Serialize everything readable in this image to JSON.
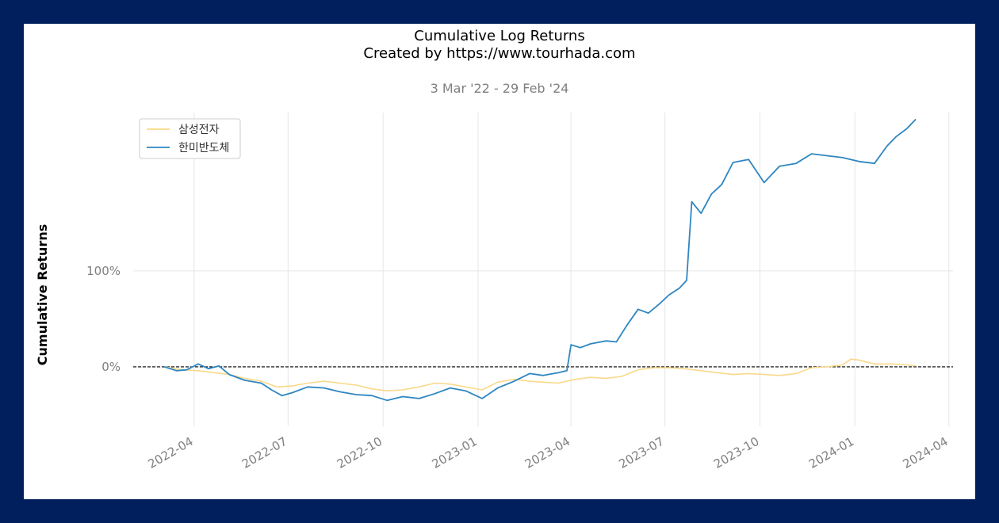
{
  "chart_data": {
    "type": "line",
    "title": "Cumulative Log Returns",
    "title2": "Created by https://www.tourhada.com",
    "subtitle": "3 Mar '22 - 29 Feb '24",
    "xlabel": "",
    "ylabel": "Cumulative Returns",
    "x_ticks": [
      "2022-04",
      "2022-07",
      "2022-10",
      "2023-01",
      "2023-04",
      "2023-07",
      "2023-10",
      "2024-01",
      "2024-04"
    ],
    "y_ticks": [
      {
        "value": 0,
        "label": "0%"
      },
      {
        "value": 100,
        "label": "100%"
      }
    ],
    "xlim": [
      "2022-02-01",
      "2024-04-05"
    ],
    "ylim": [
      -62,
      265
    ],
    "grid": true,
    "zero_line": true,
    "legend_position": "top-left",
    "series": [
      {
        "name": "삼성전자",
        "color": "#f9d98a",
        "points": [
          [
            "2022-03-03",
            0
          ],
          [
            "2022-03-20",
            -3
          ],
          [
            "2022-04-05",
            -4
          ],
          [
            "2022-04-20",
            -6
          ],
          [
            "2022-05-05",
            -8
          ],
          [
            "2022-05-20",
            -12
          ],
          [
            "2022-06-05",
            -15
          ],
          [
            "2022-06-20",
            -21
          ],
          [
            "2022-07-05",
            -20
          ],
          [
            "2022-07-20",
            -17
          ],
          [
            "2022-08-05",
            -15
          ],
          [
            "2022-08-20",
            -17
          ],
          [
            "2022-09-05",
            -19
          ],
          [
            "2022-09-20",
            -23
          ],
          [
            "2022-10-05",
            -25
          ],
          [
            "2022-10-20",
            -24
          ],
          [
            "2022-11-05",
            -21
          ],
          [
            "2022-11-20",
            -17
          ],
          [
            "2022-12-05",
            -18
          ],
          [
            "2022-12-20",
            -21
          ],
          [
            "2023-01-05",
            -24
          ],
          [
            "2023-01-20",
            -16
          ],
          [
            "2023-02-05",
            -13
          ],
          [
            "2023-02-20",
            -15
          ],
          [
            "2023-03-05",
            -16
          ],
          [
            "2023-03-20",
            -17
          ],
          [
            "2023-04-05",
            -13
          ],
          [
            "2023-04-20",
            -11
          ],
          [
            "2023-05-05",
            -12
          ],
          [
            "2023-05-20",
            -10
          ],
          [
            "2023-06-05",
            -3
          ],
          [
            "2023-06-20",
            -1
          ],
          [
            "2023-07-05",
            -1
          ],
          [
            "2023-07-20",
            -2
          ],
          [
            "2023-08-05",
            -4
          ],
          [
            "2023-08-20",
            -6
          ],
          [
            "2023-09-05",
            -8
          ],
          [
            "2023-09-20",
            -7
          ],
          [
            "2023-10-05",
            -8
          ],
          [
            "2023-10-20",
            -9
          ],
          [
            "2023-11-05",
            -7
          ],
          [
            "2023-11-20",
            -1
          ],
          [
            "2023-12-05",
            0
          ],
          [
            "2023-12-20",
            2
          ],
          [
            "2023-12-28",
            8
          ],
          [
            "2024-01-05",
            7
          ],
          [
            "2024-01-20",
            3
          ],
          [
            "2024-02-05",
            3
          ],
          [
            "2024-02-20",
            2
          ],
          [
            "2024-02-29",
            1
          ]
        ]
      },
      {
        "name": "한미반도체",
        "color": "#2e86c1",
        "points": [
          [
            "2022-03-03",
            0
          ],
          [
            "2022-03-15",
            -4
          ],
          [
            "2022-03-25",
            -3
          ],
          [
            "2022-04-05",
            3
          ],
          [
            "2022-04-15",
            -2
          ],
          [
            "2022-04-25",
            1
          ],
          [
            "2022-05-05",
            -8
          ],
          [
            "2022-05-20",
            -14
          ],
          [
            "2022-06-05",
            -17
          ],
          [
            "2022-06-15",
            -24
          ],
          [
            "2022-06-25",
            -30
          ],
          [
            "2022-07-05",
            -27
          ],
          [
            "2022-07-20",
            -21
          ],
          [
            "2022-08-05",
            -22
          ],
          [
            "2022-08-20",
            -26
          ],
          [
            "2022-09-05",
            -29
          ],
          [
            "2022-09-20",
            -30
          ],
          [
            "2022-10-05",
            -35
          ],
          [
            "2022-10-20",
            -31
          ],
          [
            "2022-11-05",
            -33
          ],
          [
            "2022-11-20",
            -28
          ],
          [
            "2022-12-05",
            -22
          ],
          [
            "2022-12-20",
            -25
          ],
          [
            "2023-01-05",
            -33
          ],
          [
            "2023-01-20",
            -22
          ],
          [
            "2023-02-05",
            -15
          ],
          [
            "2023-02-20",
            -7
          ],
          [
            "2023-03-05",
            -9
          ],
          [
            "2023-03-20",
            -6
          ],
          [
            "2023-03-28",
            -4
          ],
          [
            "2023-04-01",
            23
          ],
          [
            "2023-04-10",
            20
          ],
          [
            "2023-04-20",
            24
          ],
          [
            "2023-05-05",
            27
          ],
          [
            "2023-05-15",
            26
          ],
          [
            "2023-05-25",
            43
          ],
          [
            "2023-06-05",
            60
          ],
          [
            "2023-06-15",
            56
          ],
          [
            "2023-06-25",
            65
          ],
          [
            "2023-07-05",
            75
          ],
          [
            "2023-07-15",
            82
          ],
          [
            "2023-07-22",
            90
          ],
          [
            "2023-07-27",
            172
          ],
          [
            "2023-08-05",
            160
          ],
          [
            "2023-08-15",
            180
          ],
          [
            "2023-08-25",
            190
          ],
          [
            "2023-09-05",
            213
          ],
          [
            "2023-09-20",
            216
          ],
          [
            "2023-10-05",
            192
          ],
          [
            "2023-10-20",
            209
          ],
          [
            "2023-11-05",
            212
          ],
          [
            "2023-11-20",
            222
          ],
          [
            "2023-12-05",
            220
          ],
          [
            "2023-12-20",
            218
          ],
          [
            "2024-01-05",
            214
          ],
          [
            "2024-01-20",
            212
          ],
          [
            "2024-02-01",
            230
          ],
          [
            "2024-02-10",
            240
          ],
          [
            "2024-02-20",
            248
          ],
          [
            "2024-02-29",
            258
          ]
        ]
      }
    ]
  }
}
